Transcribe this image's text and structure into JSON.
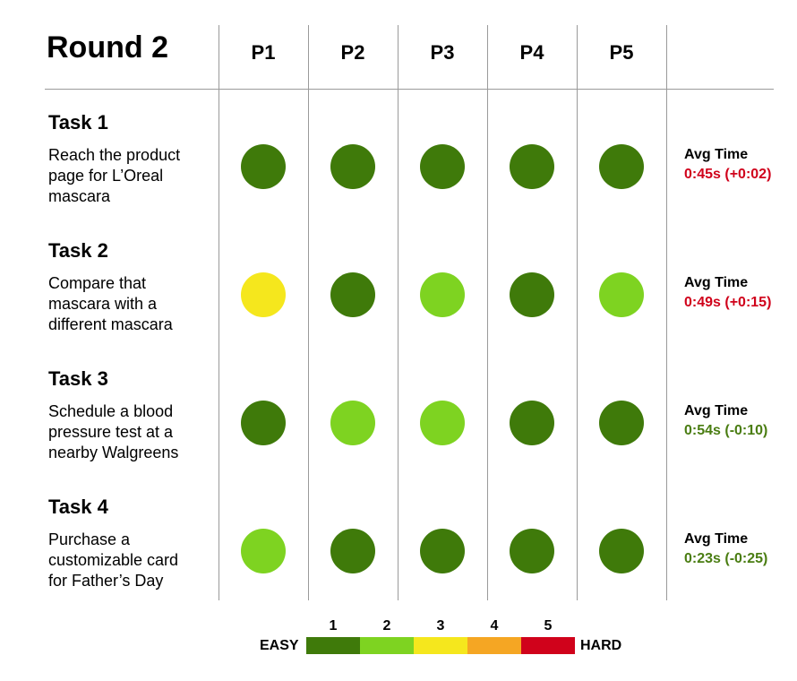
{
  "chart_data": {
    "type": "table",
    "title": "Round 2",
    "participants": [
      "P1",
      "P2",
      "P3",
      "P4",
      "P5"
    ],
    "tasks": [
      {
        "title": "Task 1",
        "description_lines": [
          "Reach the product",
          "page for L’Oreal",
          "mascara"
        ],
        "ratings": [
          1,
          1,
          1,
          1,
          1
        ],
        "avg_time_label": "Avg Time",
        "avg_time": "0:45s (+0:02)",
        "avg_time_trend": "worse"
      },
      {
        "title": "Task 2",
        "description_lines": [
          "Compare that",
          "mascara with a",
          "different mascara"
        ],
        "ratings": [
          3,
          1,
          2,
          1,
          2
        ],
        "avg_time_label": "Avg Time",
        "avg_time": "0:49s (+0:15)",
        "avg_time_trend": "worse"
      },
      {
        "title": "Task 3",
        "description_lines": [
          "Schedule a blood",
          "pressure test at a",
          "nearby Walgreens"
        ],
        "ratings": [
          1,
          2,
          2,
          1,
          1
        ],
        "avg_time_label": "Avg Time",
        "avg_time": "0:54s (-0:10)",
        "avg_time_trend": "better"
      },
      {
        "title": "Task 4",
        "description_lines": [
          "Purchase a",
          "customizable card",
          "for Father’s Day"
        ],
        "ratings": [
          2,
          1,
          1,
          1,
          1
        ],
        "avg_time_label": "Avg Time",
        "avg_time": "0:23s (-0:25)",
        "avg_time_trend": "better"
      }
    ],
    "legend": {
      "low_label": "EASY",
      "high_label": "HARD",
      "levels": [
        "1",
        "2",
        "3",
        "4",
        "5"
      ],
      "colors": [
        "#3f7a0a",
        "#7ed321",
        "#f5e71d",
        "#f5a623",
        "#d0021b"
      ]
    },
    "trend_colors": {
      "worse": "#d0021b",
      "better": "#4a7d12"
    }
  }
}
